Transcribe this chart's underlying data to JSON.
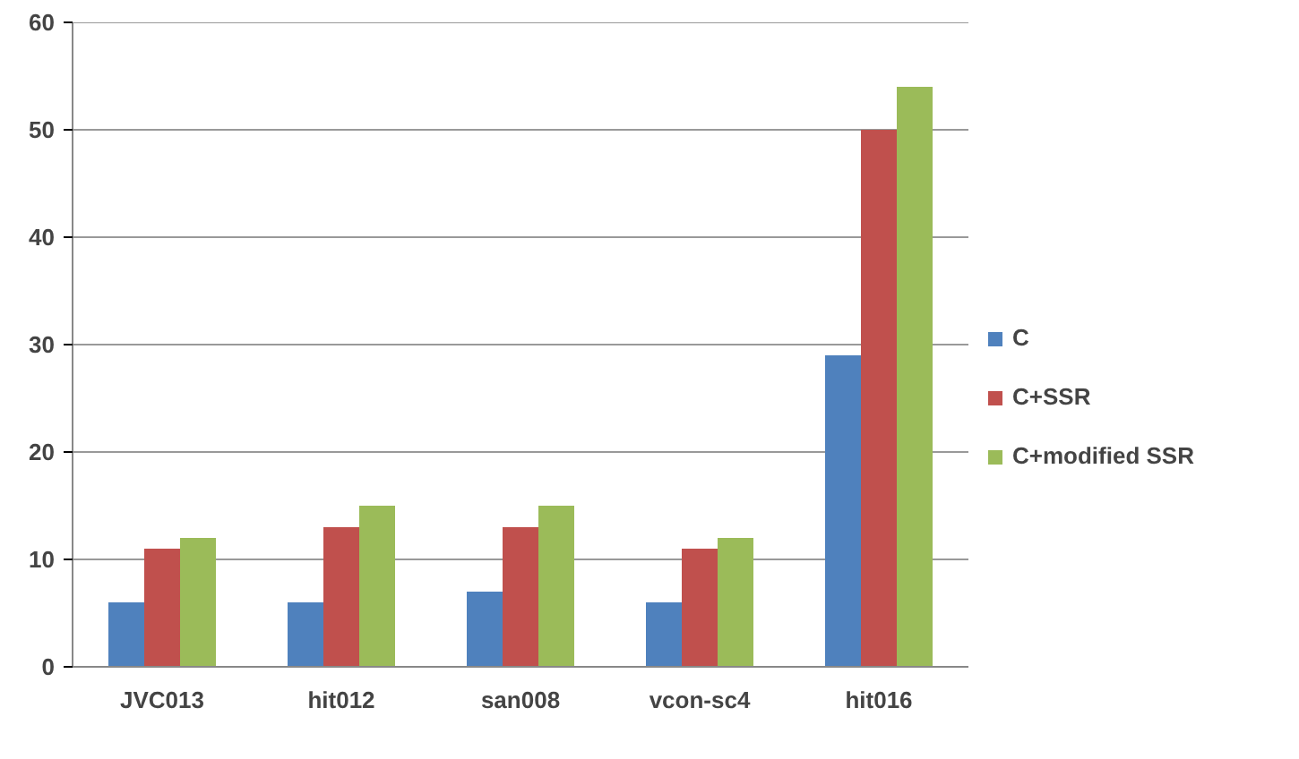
{
  "chart_data": {
    "type": "bar",
    "categories": [
      "JVC013",
      "hit012",
      "san008",
      "vcon-sc4",
      "hit016"
    ],
    "series": [
      {
        "name": "C",
        "color": "#4f81bd",
        "values": [
          6,
          6,
          7,
          6,
          29
        ]
      },
      {
        "name": "C+SSR",
        "color": "#c0504d",
        "values": [
          11,
          13,
          13,
          11,
          50
        ]
      },
      {
        "name": "C+modified SSR",
        "color": "#9bbb59",
        "values": [
          12,
          15,
          15,
          12,
          54
        ]
      }
    ],
    "ylim": [
      0,
      60
    ],
    "yticks": [
      0,
      10,
      20,
      30,
      40,
      50,
      60
    ],
    "grid": "y",
    "legend": "right"
  }
}
